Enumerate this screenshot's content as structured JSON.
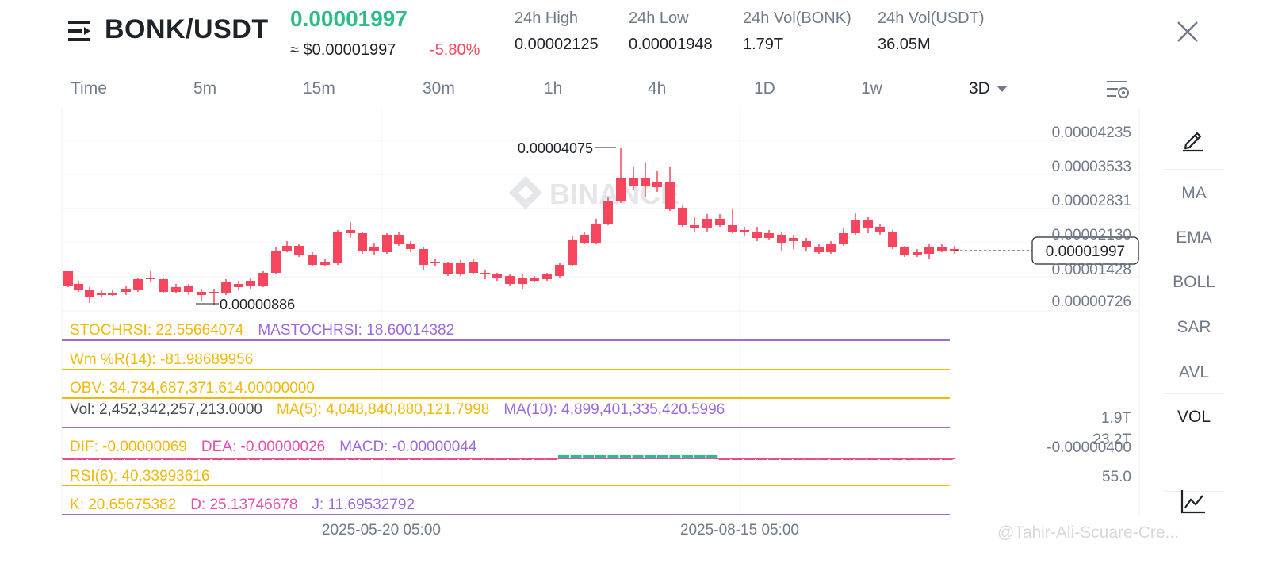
{
  "header": {
    "pair": "BONK/USDT",
    "last_price": "0.00001997",
    "usd_price": "≈ $0.00001997",
    "change_pct": "-5.80%",
    "stats": [
      {
        "label": "24h High",
        "value": "0.00002125"
      },
      {
        "label": "24h Low",
        "value": "0.00001948"
      },
      {
        "label": "24h Vol(BONK)",
        "value": "1.79T"
      },
      {
        "label": "24h Vol(USDT)",
        "value": "36.05M"
      }
    ],
    "menu_icon": "menu-lines-icon",
    "close_icon": "close-icon"
  },
  "timeframes": [
    "Time",
    "5m",
    "15m",
    "30m",
    "1h",
    "4h",
    "1D",
    "1w",
    "3D"
  ],
  "active_timeframe": "3D",
  "settings_icon": "chart-settings-icon",
  "chart": {
    "watermark": "BINANCE",
    "y_ticks": [
      "0.00004235",
      "0.00003533",
      "0.00002831",
      "0.00002130",
      "0.00001428",
      "0.00000726"
    ],
    "current_price_label": "0.00001997",
    "max_label": "0.00004075",
    "min_label": "0.00000886",
    "x_ticks": [
      "2025-05-20 05:00",
      "2025-08-15 05:00"
    ]
  },
  "indicators": {
    "stochrsi": {
      "label": "STOCHRSI: 22.55664074",
      "ma": "MASTOCHRSI: 18.60014382"
    },
    "wmr": {
      "label": "Wm %R(14): -81.98689956"
    },
    "obv": {
      "label": "OBV: 34,734,687,371,614.00000000"
    },
    "vol": {
      "label": "Vol: 2,452,342,257,213.0000",
      "ma5": "MA(5): 4,048,840,880,121.7998",
      "ma10": "MA(10): 4,899,401,335,420.5996",
      "scale": "1.9T"
    },
    "macd": {
      "dif": "DIF: -0.00000069",
      "dea": "DEA: -0.00000026",
      "macd": "MACD: -0.00000044",
      "scale_a": "23.2T",
      "scale_b": "-0.00000400"
    },
    "rsi": {
      "label": "RSI(6): 40.33993616",
      "scale": "55.0"
    },
    "kdj": {
      "k": "K: 20.65675382",
      "d": "D: 25.13746678",
      "j": "J: 11.69532792"
    }
  },
  "sidebar": {
    "draw_icon": "pencil-icon",
    "items": [
      "MA",
      "EMA",
      "BOLL",
      "SAR",
      "AVL",
      "VOL"
    ],
    "active_item": "VOL",
    "bottom_icon": "line-chart-icon"
  },
  "colors": {
    "up": "#2ebd85",
    "down": "#f6465d",
    "yellow": "#f0b90b",
    "purple": "#9c6ad9",
    "pink": "#e24fae"
  },
  "watermark_footer": "@Tahir-Ali-Scuare-Cre..."
}
